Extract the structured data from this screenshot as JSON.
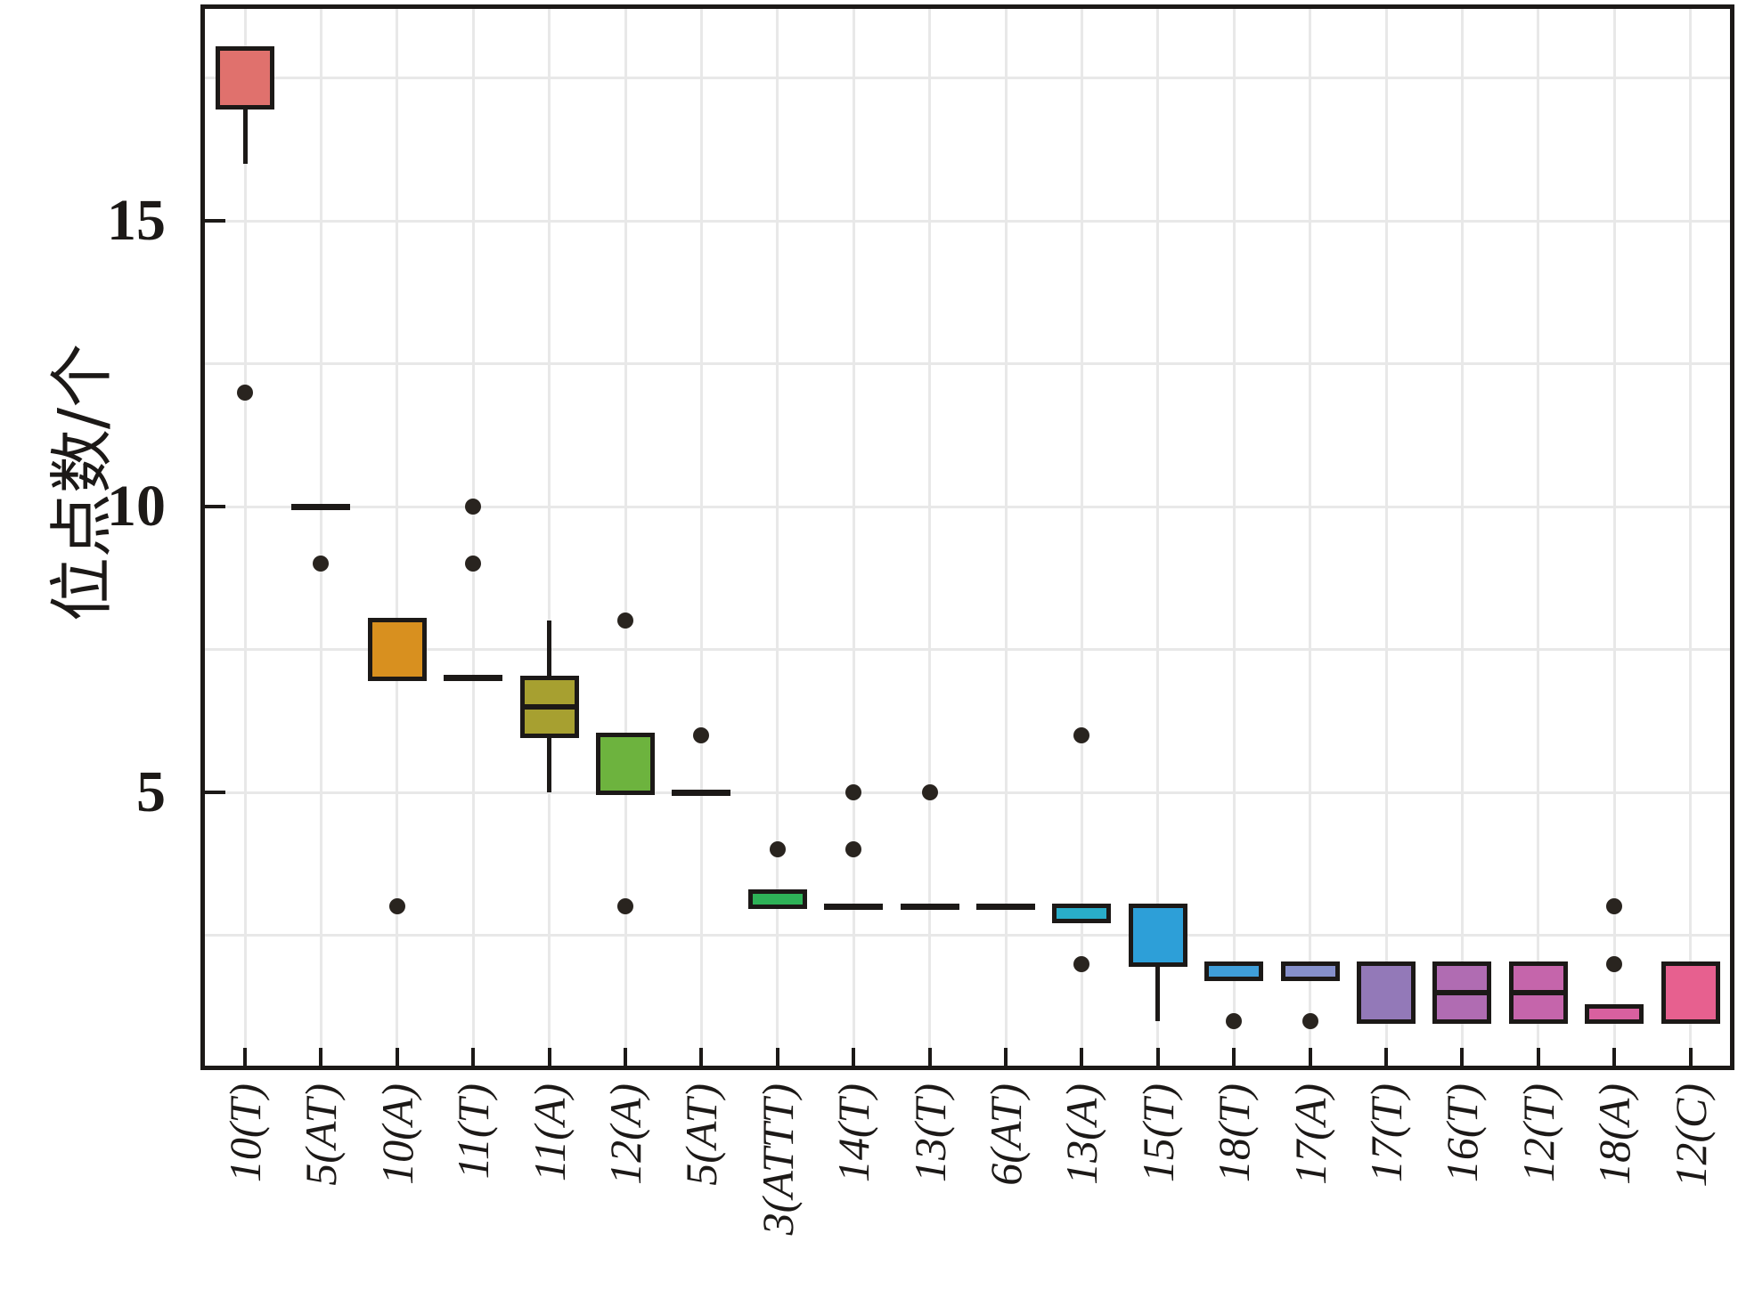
{
  "figure": {
    "background": "#ffffff",
    "line_color": "#1c1917",
    "grid_color": "#e8e8e8",
    "y_axis_title": "位点数/个"
  },
  "chart_data": {
    "type": "boxplot",
    "title": "",
    "xlabel": "",
    "ylabel": "位点数/个",
    "ytick_values": [
      5,
      10,
      15
    ],
    "ytick_labels": [
      "5",
      "10",
      "15"
    ],
    "ylim": [
      0.15,
      18.8
    ],
    "grid": "on",
    "grid_interval": 2.5,
    "legend": "none",
    "categories": [
      {
        "label": "10(T)",
        "q1": 17,
        "median": null,
        "q3": 18,
        "whisker_low": 16,
        "whisker_high": null,
        "outliers": [
          12
        ],
        "fill": "#E0716D"
      },
      {
        "label": "5(AT)",
        "flat_value": 10,
        "outliers": [
          9
        ],
        "fill": null
      },
      {
        "label": "10(A)",
        "q1": 7,
        "median": null,
        "q3": 8,
        "whisker_low": null,
        "whisker_high": null,
        "outliers": [
          3
        ],
        "fill": "#D8901F"
      },
      {
        "label": "11(T)",
        "flat_value": 7,
        "outliers": [
          10,
          9
        ],
        "fill": null
      },
      {
        "label": "11(A)",
        "q1": 6,
        "median": 6.5,
        "q3": 7,
        "whisker_low": 5,
        "whisker_high": 8,
        "outliers": [],
        "fill": "#A7A030"
      },
      {
        "label": "12(A)",
        "q1": 5,
        "median": null,
        "q3": 6,
        "whisker_low": null,
        "whisker_high": null,
        "outliers": [
          8,
          3
        ],
        "fill": "#6DB33E"
      },
      {
        "label": "5(AT)",
        "flat_value": 5,
        "outliers": [
          6
        ],
        "fill": null
      },
      {
        "label": "3(ATTT)",
        "q1": 3,
        "median": null,
        "q3": 3.25,
        "whisker_low": null,
        "whisker_high": null,
        "outliers": [
          4
        ],
        "fill": "#2EB257"
      },
      {
        "label": "14(T)",
        "flat_value": 3,
        "outliers": [
          5,
          4
        ],
        "fill": null
      },
      {
        "label": "13(T)",
        "flat_value": 3,
        "outliers": [
          5
        ],
        "fill": null
      },
      {
        "label": "6(AT)",
        "flat_value": 3,
        "outliers": [],
        "fill": null
      },
      {
        "label": "13(A)",
        "q1": 2.75,
        "median": null,
        "q3": 3,
        "whisker_low": null,
        "whisker_high": null,
        "outliers": [
          6,
          2
        ],
        "fill": "#29ADC9"
      },
      {
        "label": "15(T)",
        "q1": 2,
        "median": null,
        "q3": 3,
        "whisker_low": 1,
        "whisker_high": null,
        "outliers": [],
        "fill": "#2D9FD8"
      },
      {
        "label": "18(T)",
        "q1": 1.75,
        "median": null,
        "q3": 2,
        "whisker_low": null,
        "whisker_high": null,
        "outliers": [
          1
        ],
        "fill": "#3F9ED9"
      },
      {
        "label": "17(A)",
        "q1": 1.75,
        "median": null,
        "q3": 2,
        "whisker_low": null,
        "whisker_high": null,
        "outliers": [
          1
        ],
        "fill": "#8690CB"
      },
      {
        "label": "17(T)",
        "q1": 1,
        "median": null,
        "q3": 2,
        "whisker_low": null,
        "whisker_high": null,
        "outliers": [],
        "fill": "#9379B8"
      },
      {
        "label": "16(T)",
        "q1": 1,
        "median": 1.5,
        "q3": 2,
        "whisker_low": null,
        "whisker_high": null,
        "outliers": [],
        "fill": "#B06CB2"
      },
      {
        "label": "12(T)",
        "q1": 1,
        "median": 1.5,
        "q3": 2,
        "whisker_low": null,
        "whisker_high": null,
        "outliers": [],
        "fill": "#C565AB"
      },
      {
        "label": "18(A)",
        "q1": 1,
        "median": null,
        "q3": 1.25,
        "whisker_low": null,
        "whisker_high": null,
        "outliers": [
          3,
          2
        ],
        "fill": "#D8609F"
      },
      {
        "label": "12(C)",
        "q1": 1,
        "median": null,
        "q3": 2,
        "whisker_low": null,
        "whisker_high": null,
        "outliers": [],
        "fill": "#E7608F"
      }
    ]
  }
}
